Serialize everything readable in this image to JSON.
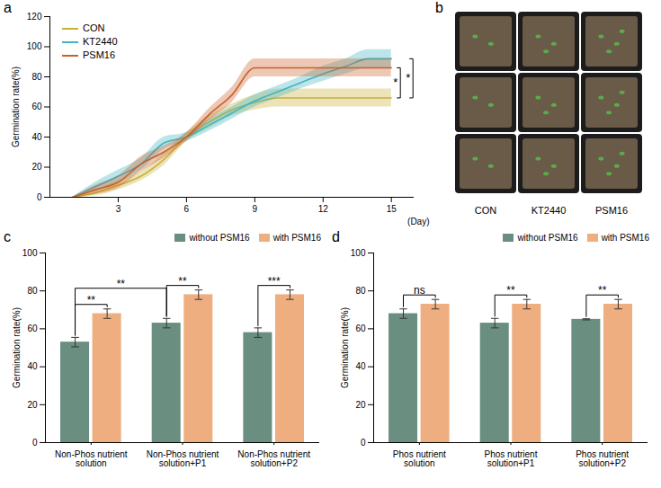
{
  "chart_data": [
    {
      "panel": "a",
      "type": "line",
      "x_label": "(Day)",
      "y_label": "Germination rate(%)",
      "x": [
        1,
        2,
        3,
        4,
        5,
        6,
        7,
        8,
        9,
        10,
        11,
        12,
        13,
        14,
        15
      ],
      "xlim": [
        0,
        16
      ],
      "xticks": [
        3,
        6,
        9,
        12,
        15
      ],
      "ylim": [
        0,
        120
      ],
      "yticks": [
        0,
        20,
        40,
        60,
        80,
        100,
        120
      ],
      "legend": "upper left",
      "series": [
        {
          "name": "CON",
          "color": "#c9b037",
          "values": [
            0,
            3,
            8,
            14,
            25,
            40,
            50,
            58,
            63,
            66,
            66,
            66,
            66,
            66,
            66
          ],
          "errors": [
            0,
            2,
            3,
            3,
            4,
            3,
            4,
            4,
            5,
            6,
            6,
            6,
            6,
            6,
            6
          ]
        },
        {
          "name": "KT2440",
          "color": "#3fb4c4",
          "values": [
            0,
            7,
            14,
            22,
            36,
            40,
            48,
            56,
            64,
            70,
            76,
            82,
            87,
            92,
            92
          ],
          "errors": [
            0,
            3,
            4,
            4,
            4,
            3,
            4,
            4,
            4,
            4,
            4,
            5,
            5,
            6,
            6
          ]
        },
        {
          "name": "PSM16",
          "color": "#c8602a",
          "values": [
            0,
            5,
            10,
            22,
            30,
            40,
            55,
            68,
            86,
            86,
            86,
            86,
            86,
            86,
            86
          ],
          "errors": [
            0,
            3,
            4,
            5,
            4,
            3,
            4,
            5,
            6,
            6,
            6,
            6,
            6,
            6,
            6
          ]
        }
      ],
      "annotations": [
        {
          "series": [
            "PSM16",
            "CON"
          ],
          "label": "*"
        },
        {
          "series": [
            "KT2440",
            "CON"
          ],
          "label": "*"
        }
      ]
    },
    {
      "panel": "b",
      "type": "image",
      "categories": [
        "CON",
        "KT2440",
        "PSM16"
      ]
    },
    {
      "panel": "c",
      "type": "bar",
      "y_label": "Germination rate(%)",
      "categories": [
        "Non-Phos nutrient solution",
        "Non-Phos nutrient solution+P1",
        "Non-Phos nutrient solution+P2"
      ],
      "ylim": [
        0,
        100
      ],
      "yticks": [
        0,
        20,
        40,
        60,
        80,
        100
      ],
      "legend": "top",
      "series": [
        {
          "name": "without PSM16",
          "color": "#6a8e7f",
          "values": [
            53,
            63,
            58
          ],
          "errors": [
            2.5,
            2.5,
            2.5
          ]
        },
        {
          "name": "with PSM16",
          "color": "#eeae80",
          "values": [
            68,
            78,
            78
          ],
          "errors": [
            2.5,
            2.5,
            2.5
          ]
        }
      ],
      "annotations": [
        {
          "from": {
            "category": "Non-Phos nutrient solution",
            "series": "without PSM16"
          },
          "to": {
            "category": "Non-Phos nutrient solution",
            "series": "with PSM16"
          },
          "label": "**"
        },
        {
          "from": {
            "category": "Non-Phos nutrient solution+P1",
            "series": "without PSM16"
          },
          "to": {
            "category": "Non-Phos nutrient solution+P1",
            "series": "with PSM16"
          },
          "label": "**"
        },
        {
          "from": {
            "category": "Non-Phos nutrient solution+P2",
            "series": "without PSM16"
          },
          "to": {
            "category": "Non-Phos nutrient solution+P2",
            "series": "with PSM16"
          },
          "label": "***"
        },
        {
          "from": {
            "category": "Non-Phos nutrient solution",
            "series": "without PSM16"
          },
          "to": {
            "category": "Non-Phos nutrient solution+P1",
            "series": "without PSM16"
          },
          "label": "**"
        }
      ]
    },
    {
      "panel": "d",
      "type": "bar",
      "y_label": "Germination rate(%)",
      "categories": [
        "Phos nutrient solution",
        "Phos nutrient solution+P1",
        "Phos nutrient solution+P2"
      ],
      "ylim": [
        0,
        100
      ],
      "yticks": [
        0,
        20,
        40,
        60,
        80,
        100
      ],
      "legend": "top",
      "series": [
        {
          "name": "without PSM16",
          "color": "#6a8e7f",
          "values": [
            68,
            63,
            65
          ],
          "errors": [
            2.5,
            2.5,
            0.3
          ]
        },
        {
          "name": "with PSM16",
          "color": "#eeae80",
          "values": [
            73,
            73,
            73
          ],
          "errors": [
            2.5,
            2.5,
            2.5
          ]
        }
      ],
      "annotations": [
        {
          "from": {
            "category": "Phos nutrient solution",
            "series": "without PSM16"
          },
          "to": {
            "category": "Phos nutrient solution",
            "series": "with PSM16"
          },
          "label": "ns"
        },
        {
          "from": {
            "category": "Phos nutrient solution+P1",
            "series": "without PSM16"
          },
          "to": {
            "category": "Phos nutrient solution+P1",
            "series": "with PSM16"
          },
          "label": "**"
        },
        {
          "from": {
            "category": "Phos nutrient solution+P2",
            "series": "without PSM16"
          },
          "to": {
            "category": "Phos nutrient solution+P2",
            "series": "with PSM16"
          },
          "label": "**"
        }
      ]
    }
  ]
}
